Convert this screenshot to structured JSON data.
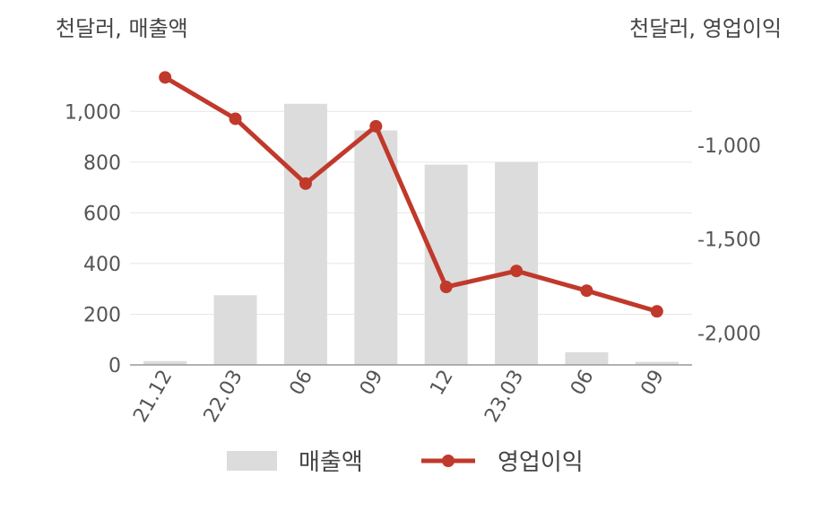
{
  "unit_left": "천달러, 매출액",
  "unit_right": "천달러, 영업이익",
  "chart_data": {
    "type": "bar",
    "categories": [
      "21.12",
      "22.03",
      "06",
      "09",
      "12",
      "23.03",
      "06",
      "09"
    ],
    "series": [
      {
        "name": "매출액",
        "type": "bar",
        "axis": "left",
        "values": [
          15,
          275,
          1030,
          925,
          790,
          800,
          50,
          12
        ]
      },
      {
        "name": "영업이익",
        "type": "line",
        "axis": "right",
        "values": [
          -640,
          -860,
          -1205,
          -900,
          -1755,
          -1670,
          -1775,
          -1885
        ]
      }
    ],
    "left_axis": {
      "ylim": [
        0,
        1100
      ],
      "ticks": [
        0,
        200,
        400,
        600,
        800,
        1000
      ],
      "tick_labels": [
        "0",
        "200",
        "400",
        "600",
        "800",
        "1,000"
      ]
    },
    "right_axis": {
      "ylim": [
        -2170,
        -500
      ],
      "ticks": [
        -1000,
        -1500,
        -2000
      ],
      "tick_labels": [
        "-1,000",
        "-1,500",
        "-2,000"
      ]
    },
    "colors": {
      "bar": "#dcdcdc",
      "line": "#c0392b",
      "grid": "#e6e6e6",
      "axis": "#999999"
    },
    "legend": {
      "position": "bottom",
      "labels": [
        "매출액",
        "영업이익"
      ]
    }
  }
}
